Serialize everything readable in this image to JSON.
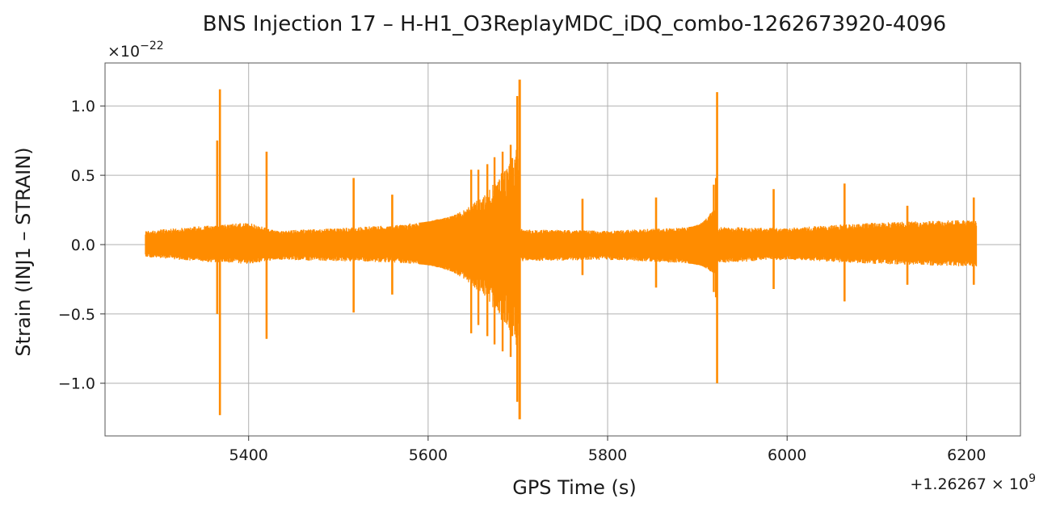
{
  "chart_data": {
    "type": "line",
    "title": "BNS Injection 17 – H-H1_O3ReplayMDC_iDQ_combo-1262673920-4096",
    "xlabel": "GPS Time (s)",
    "ylabel": "Strain (INJ1 – STRAIN)",
    "x_offset_label": "+1.26267 × 10",
    "x_offset_exp": "9",
    "y_scale_label": "×10",
    "y_scale_exp": "−22",
    "xlim": [
      5240,
      6260
    ],
    "ylim": [
      -1.38,
      1.31
    ],
    "x_ticks": [
      {
        "value": 5400,
        "label": "5400"
      },
      {
        "value": 5600,
        "label": "5600"
      },
      {
        "value": 5800,
        "label": "5800"
      },
      {
        "value": 6000,
        "label": "6000"
      },
      {
        "value": 6200,
        "label": "6200"
      }
    ],
    "y_ticks": [
      {
        "value": 1.0,
        "label": "1.0"
      },
      {
        "value": 0.5,
        "label": "0.5"
      },
      {
        "value": 0.0,
        "label": "0.0"
      },
      {
        "value": -0.5,
        "label": "−0.5"
      },
      {
        "value": -1.0,
        "label": "−1.0"
      }
    ],
    "grid": true,
    "series": [
      {
        "color": "#ff8c00",
        "x_range": [
          5285,
          6211
        ],
        "baseline_envelope": [
          {
            "x": 5285,
            "upper": 0.1,
            "lower": -0.09
          },
          {
            "x": 5340,
            "upper": 0.13,
            "lower": -0.12
          },
          {
            "x": 5400,
            "upper": 0.16,
            "lower": -0.14
          },
          {
            "x": 5430,
            "upper": 0.1,
            "lower": -0.11
          },
          {
            "x": 5500,
            "upper": 0.12,
            "lower": -0.12
          },
          {
            "x": 5560,
            "upper": 0.14,
            "lower": -0.13
          },
          {
            "x": 5610,
            "upper": 0.17,
            "lower": -0.15
          },
          {
            "x": 5710,
            "upper": 0.11,
            "lower": -0.12
          },
          {
            "x": 5800,
            "upper": 0.1,
            "lower": -0.11
          },
          {
            "x": 5900,
            "upper": 0.13,
            "lower": -0.14
          },
          {
            "x": 6000,
            "upper": 0.12,
            "lower": -0.11
          },
          {
            "x": 6100,
            "upper": 0.16,
            "lower": -0.14
          },
          {
            "x": 6211,
            "upper": 0.18,
            "lower": -0.16
          }
        ],
        "spikes": [
          {
            "x": 5365,
            "max": 0.75,
            "min": -0.5
          },
          {
            "x": 5368,
            "max": 1.12,
            "min": -1.23
          },
          {
            "x": 5420,
            "max": 0.67,
            "min": -0.68
          },
          {
            "x": 5517,
            "max": 0.48,
            "min": -0.49
          },
          {
            "x": 5560,
            "max": 0.36,
            "min": -0.36
          },
          {
            "x": 5772,
            "max": 0.33,
            "min": -0.22
          },
          {
            "x": 5854,
            "max": 0.34,
            "min": -0.31
          },
          {
            "x": 5922,
            "max": 1.1,
            "min": -1.0
          },
          {
            "x": 5985,
            "max": 0.4,
            "min": -0.32
          },
          {
            "x": 6064,
            "max": 0.44,
            "min": -0.41
          },
          {
            "x": 6134,
            "max": 0.28,
            "min": -0.29
          },
          {
            "x": 6208,
            "max": 0.34,
            "min": -0.29
          }
        ],
        "chirps": [
          {
            "x_start": 5590,
            "x_end": 5702,
            "peak_max": 1.19,
            "peak_min": -1.26,
            "burst_peaks": [
              {
                "x": 5648,
                "max": 0.54,
                "min": -0.64
              },
              {
                "x": 5656,
                "max": 0.54,
                "min": -0.58
              },
              {
                "x": 5666,
                "max": 0.58,
                "min": -0.66
              },
              {
                "x": 5674,
                "max": 0.63,
                "min": -0.72
              },
              {
                "x": 5683,
                "max": 0.67,
                "min": -0.77
              },
              {
                "x": 5692,
                "max": 0.72,
                "min": -0.81
              }
            ]
          },
          {
            "x_start": 5890,
            "x_end": 5921,
            "peak_max": 0.48,
            "peak_min": -0.38,
            "burst_peaks": []
          }
        ]
      }
    ]
  }
}
